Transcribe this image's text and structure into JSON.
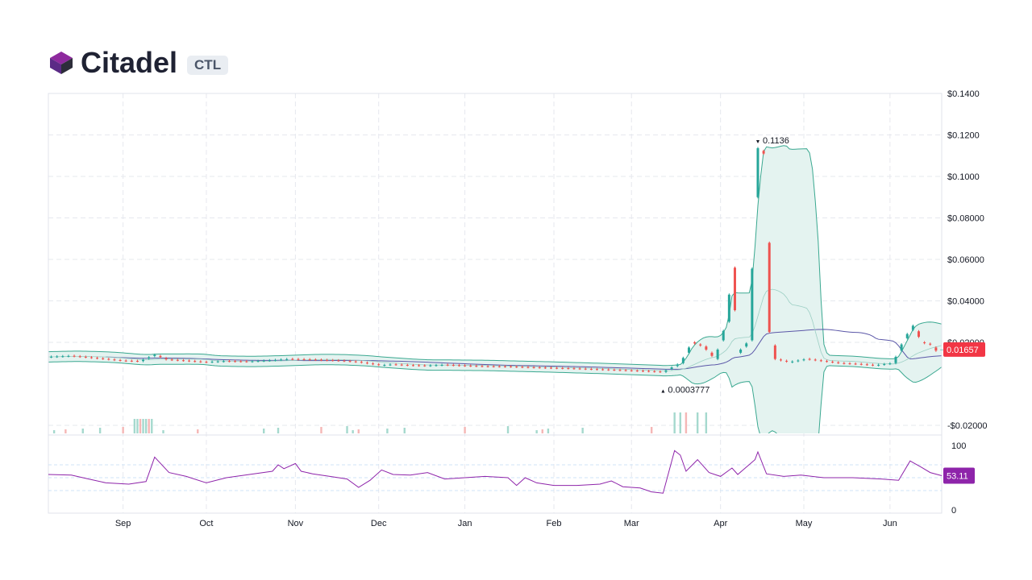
{
  "header": {
    "title": "Citadel",
    "ticker": "CTL",
    "logo_icon": "cube-logo-icon",
    "logo_colors": [
      "#5b2a86",
      "#8e2a9e",
      "#2d2d3a"
    ]
  },
  "chart_data": {
    "type": "candlestick",
    "price_axis": {
      "ticks": [
        "$0.1400",
        "$0.1200",
        "$0.1000",
        "$0.08000",
        "$0.06000",
        "$0.04000",
        "$0.02000",
        "-$0.02000"
      ],
      "tick_values": [
        0.14,
        0.12,
        0.1,
        0.08,
        0.06,
        0.04,
        0.02,
        -0.02
      ],
      "range": [
        -0.024,
        0.14
      ]
    },
    "time_axis": {
      "labels": [
        "Sep",
        "Oct",
        "Nov",
        "Dec",
        "Jan",
        "Feb",
        "Mar",
        "Apr",
        "May",
        "Jun"
      ],
      "range_days": [
        0,
        311
      ],
      "label_days": [
        26,
        55,
        86,
        115,
        145,
        176,
        203,
        234,
        263,
        293
      ]
    },
    "last_price": {
      "label": "0.01657",
      "value": 0.01657,
      "color": "#f23645"
    },
    "annotations": [
      {
        "label": "0.1136",
        "day": 247,
        "value": 0.1136,
        "marker": "down"
      },
      {
        "label": "0.0003777",
        "day": 214,
        "value": 0.0003777,
        "marker": "up"
      }
    ],
    "colors": {
      "up": "#26a69a",
      "down": "#ef5350",
      "band_fill": "#e4f3f0",
      "band_line": "#3aa890",
      "ma_line": "#5b57a8",
      "rsi": "#8e24aa"
    },
    "daily_closes": [
      [
        0,
        0.013
      ],
      [
        8,
        0.0135
      ],
      [
        14,
        0.0128
      ],
      [
        20,
        0.012
      ],
      [
        26,
        0.0112
      ],
      [
        32,
        0.011
      ],
      [
        37,
        0.014
      ],
      [
        41,
        0.0118
      ],
      [
        48,
        0.0112
      ],
      [
        55,
        0.0105
      ],
      [
        62,
        0.011
      ],
      [
        70,
        0.0108
      ],
      [
        78,
        0.0114
      ],
      [
        84,
        0.012
      ],
      [
        90,
        0.0118
      ],
      [
        96,
        0.0115
      ],
      [
        102,
        0.0112
      ],
      [
        108,
        0.0106
      ],
      [
        112,
        0.0098
      ],
      [
        116,
        0.009
      ],
      [
        120,
        0.0094
      ],
      [
        126,
        0.009
      ],
      [
        132,
        0.0088
      ],
      [
        138,
        0.0092
      ],
      [
        145,
        0.0088
      ],
      [
        152,
        0.0085
      ],
      [
        160,
        0.0084
      ],
      [
        168,
        0.008
      ],
      [
        176,
        0.0077
      ],
      [
        184,
        0.0074
      ],
      [
        192,
        0.007
      ],
      [
        200,
        0.0066
      ],
      [
        208,
        0.0062
      ],
      [
        214,
        0.0058
      ],
      [
        220,
        0.01
      ],
      [
        224,
        0.02
      ],
      [
        228,
        0.018
      ],
      [
        232,
        0.012
      ],
      [
        236,
        0.03
      ],
      [
        238,
        0.056
      ],
      [
        240,
        0.015
      ],
      [
        244,
        0.021
      ],
      [
        246,
        0.09
      ],
      [
        247,
        0.1136
      ],
      [
        249,
        0.111
      ],
      [
        251,
        0.025
      ],
      [
        253,
        0.012
      ],
      [
        258,
        0.0105
      ],
      [
        264,
        0.012
      ],
      [
        270,
        0.011
      ],
      [
        276,
        0.01
      ],
      [
        282,
        0.0096
      ],
      [
        288,
        0.009
      ],
      [
        294,
        0.01
      ],
      [
        298,
        0.022
      ],
      [
        301,
        0.028
      ],
      [
        304,
        0.02
      ],
      [
        307,
        0.019
      ],
      [
        309,
        0.016
      ],
      [
        311,
        0.01657
      ]
    ],
    "volume_bars_days": [
      2,
      6,
      12,
      18,
      26,
      30,
      31,
      32,
      33,
      34,
      35,
      36,
      40,
      52,
      75,
      80,
      95,
      104,
      106,
      108,
      118,
      124,
      145,
      160,
      170,
      172,
      174,
      186,
      210,
      218,
      220,
      222,
      226,
      229
    ],
    "rsi": {
      "ticks": [
        "100",
        "0"
      ],
      "tick_values": [
        100,
        0
      ],
      "current_label": "53.11",
      "current_value": 53.11,
      "values": [
        [
          0,
          55
        ],
        [
          8,
          54
        ],
        [
          14,
          48
        ],
        [
          20,
          42
        ],
        [
          28,
          40
        ],
        [
          34,
          44
        ],
        [
          37,
          82
        ],
        [
          42,
          58
        ],
        [
          48,
          52
        ],
        [
          55,
          42
        ],
        [
          62,
          50
        ],
        [
          70,
          55
        ],
        [
          78,
          60
        ],
        [
          80,
          70
        ],
        [
          82,
          64
        ],
        [
          86,
          72
        ],
        [
          88,
          60
        ],
        [
          92,
          56
        ],
        [
          98,
          52
        ],
        [
          104,
          48
        ],
        [
          108,
          35
        ],
        [
          112,
          46
        ],
        [
          116,
          62
        ],
        [
          120,
          55
        ],
        [
          126,
          54
        ],
        [
          132,
          58
        ],
        [
          138,
          48
        ],
        [
          145,
          50
        ],
        [
          152,
          52
        ],
        [
          160,
          50
        ],
        [
          163,
          38
        ],
        [
          166,
          50
        ],
        [
          170,
          42
        ],
        [
          176,
          38
        ],
        [
          184,
          38
        ],
        [
          192,
          40
        ],
        [
          196,
          45
        ],
        [
          200,
          36
        ],
        [
          206,
          34
        ],
        [
          210,
          28
        ],
        [
          214,
          26
        ],
        [
          218,
          92
        ],
        [
          220,
          85
        ],
        [
          222,
          60
        ],
        [
          226,
          78
        ],
        [
          230,
          58
        ],
        [
          234,
          52
        ],
        [
          238,
          65
        ],
        [
          240,
          55
        ],
        [
          246,
          78
        ],
        [
          247,
          90
        ],
        [
          250,
          56
        ],
        [
          256,
          52
        ],
        [
          262,
          54
        ],
        [
          270,
          50
        ],
        [
          280,
          50
        ],
        [
          290,
          48
        ],
        [
          296,
          46
        ],
        [
          300,
          76
        ],
        [
          304,
          66
        ],
        [
          307,
          58
        ],
        [
          311,
          53.11
        ]
      ]
    }
  }
}
